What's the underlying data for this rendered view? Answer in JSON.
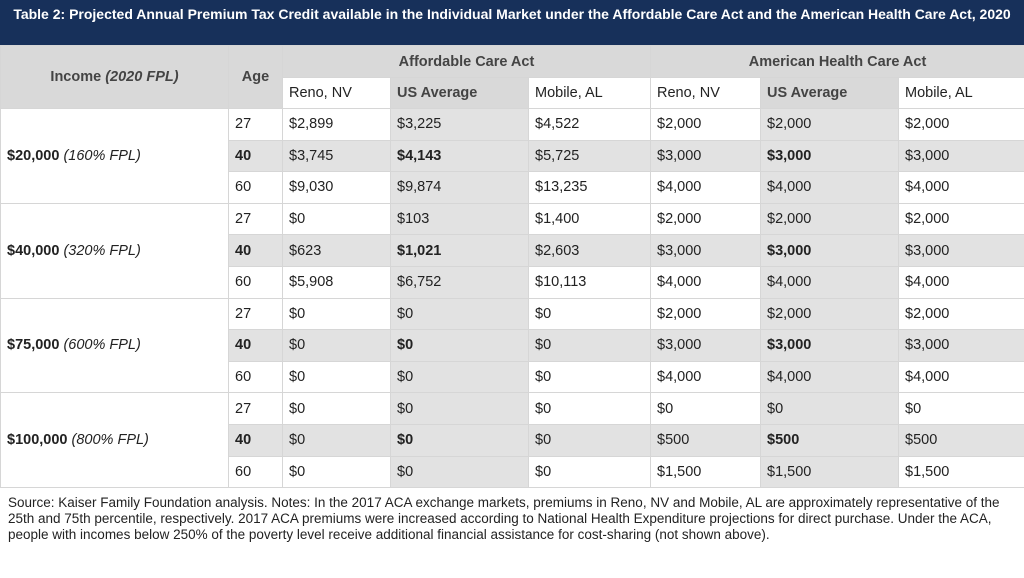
{
  "title": "Table 2: Projected Annual Premium Tax Credit available in the Individual Market under the Affordable Care Act and the American Health Care Act, 2020",
  "table": {
    "header": {
      "income": "Income",
      "income_note": "(2020 FPL)",
      "age": "Age",
      "groups": [
        "Affordable Care Act",
        "American Health Care Act"
      ],
      "columns": [
        "Reno, NV",
        "US Average",
        "Mobile, AL",
        "Reno, NV",
        "US Average",
        "Mobile, AL"
      ]
    },
    "groups": [
      {
        "income": "$20,000",
        "fpl": "(160% FPL)",
        "rows": [
          [
            "27",
            "$2,899",
            "$3,225",
            "$4,522",
            "$2,000",
            "$2,000",
            "$2,000"
          ],
          [
            "40",
            "$3,745",
            "$4,143",
            "$5,725",
            "$3,000",
            "$3,000",
            "$3,000"
          ],
          [
            "60",
            "$9,030",
            "$9,874",
            "$13,235",
            "$4,000",
            "$4,000",
            "$4,000"
          ]
        ]
      },
      {
        "income": "$40,000",
        "fpl": "(320% FPL)",
        "rows": [
          [
            "27",
            "$0",
            "$103",
            "$1,400",
            "$2,000",
            "$2,000",
            "$2,000"
          ],
          [
            "40",
            "$623",
            "$1,021",
            "$2,603",
            "$3,000",
            "$3,000",
            "$3,000"
          ],
          [
            "60",
            "$5,908",
            "$6,752",
            "$10,113",
            "$4,000",
            "$4,000",
            "$4,000"
          ]
        ]
      },
      {
        "income": "$75,000",
        "fpl": "(600% FPL)",
        "rows": [
          [
            "27",
            "$0",
            "$0",
            "$0",
            "$2,000",
            "$2,000",
            "$2,000"
          ],
          [
            "40",
            "$0",
            "$0",
            "$0",
            "$3,000",
            "$3,000",
            "$3,000"
          ],
          [
            "60",
            "$0",
            "$0",
            "$0",
            "$4,000",
            "$4,000",
            "$4,000"
          ]
        ]
      },
      {
        "income": "$100,000",
        "fpl": "(800% FPL)",
        "rows": [
          [
            "27",
            "$0",
            "$0",
            "$0",
            "$0",
            "$0",
            "$0"
          ],
          [
            "40",
            "$0",
            "$0",
            "$0",
            "$500",
            "$500",
            "$500"
          ],
          [
            "60",
            "$0",
            "$0",
            "$0",
            "$1,500",
            "$1,500",
            "$1,500"
          ]
        ]
      }
    ]
  },
  "source": "Source: Kaiser Family Foundation analysis. Notes: In the 2017 ACA exchange markets, premiums in Reno, NV and Mobile, AL are approximately representative of the 25th and 75th percentile, respectively. 2017 ACA premiums were increased according to National Health Expenditure projections for direct purchase. Under the ACA, people with incomes below 250% of the poverty level receive additional financial assistance for cost-sharing (not shown above)."
}
